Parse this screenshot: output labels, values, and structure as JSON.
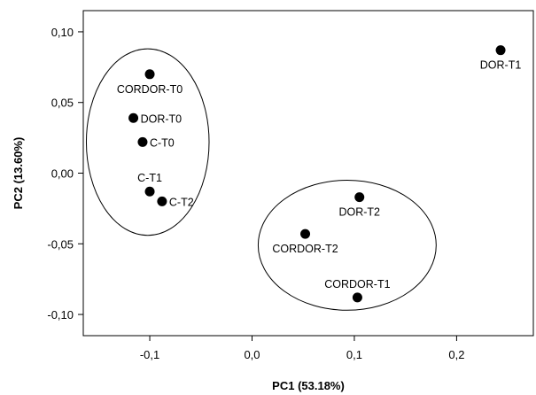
{
  "chart_data": {
    "type": "scatter",
    "xlabel": "PC1 (53.18%)",
    "ylabel": "PC2 (13.60%)",
    "xlim": [
      -0.165,
      0.275
    ],
    "ylim": [
      -0.115,
      0.115
    ],
    "xticks": [
      {
        "value": -0.1,
        "label": "-0,1"
      },
      {
        "value": 0.0,
        "label": "0,0"
      },
      {
        "value": 0.1,
        "label": "0,1"
      },
      {
        "value": 0.2,
        "label": "0,2"
      }
    ],
    "yticks": [
      {
        "value": 0.1,
        "label": "0,10"
      },
      {
        "value": 0.05,
        "label": "0,05"
      },
      {
        "value": 0.0,
        "label": "0,00"
      },
      {
        "value": -0.05,
        "label": "-0,05"
      },
      {
        "value": -0.1,
        "label": "-0,10"
      }
    ],
    "grid": false,
    "points": [
      {
        "label": "CORDOR-T0",
        "x": -0.1,
        "y": 0.07,
        "label_pos": "below"
      },
      {
        "label": "DOR-T0",
        "x": -0.116,
        "y": 0.039,
        "label_pos": "right"
      },
      {
        "label": "C-T0",
        "x": -0.107,
        "y": 0.022,
        "label_pos": "right"
      },
      {
        "label": "C-T1",
        "x": -0.1,
        "y": -0.013,
        "label_pos": "above"
      },
      {
        "label": "C-T2",
        "x": -0.088,
        "y": -0.02,
        "label_pos": "right"
      },
      {
        "label": "DOR-T1",
        "x": 0.243,
        "y": 0.087,
        "label_pos": "below"
      },
      {
        "label": "DOR-T2",
        "x": 0.105,
        "y": -0.017,
        "label_pos": "below"
      },
      {
        "label": "CORDOR-T2",
        "x": 0.052,
        "y": -0.043,
        "label_pos": "below"
      },
      {
        "label": "CORDOR-T1",
        "x": 0.103,
        "y": -0.088,
        "label_pos": "above"
      }
    ],
    "groups": [
      {
        "members": [
          "CORDOR-T0",
          "DOR-T0",
          "C-T0",
          "C-T1",
          "C-T2"
        ],
        "center": [
          -0.102,
          0.022
        ],
        "radius": [
          0.06,
          0.066
        ]
      },
      {
        "members": [
          "DOR-T2",
          "CORDOR-T2",
          "CORDOR-T1"
        ],
        "center": [
          0.093,
          -0.051
        ],
        "radius": [
          0.087,
          0.046
        ]
      }
    ]
  }
}
